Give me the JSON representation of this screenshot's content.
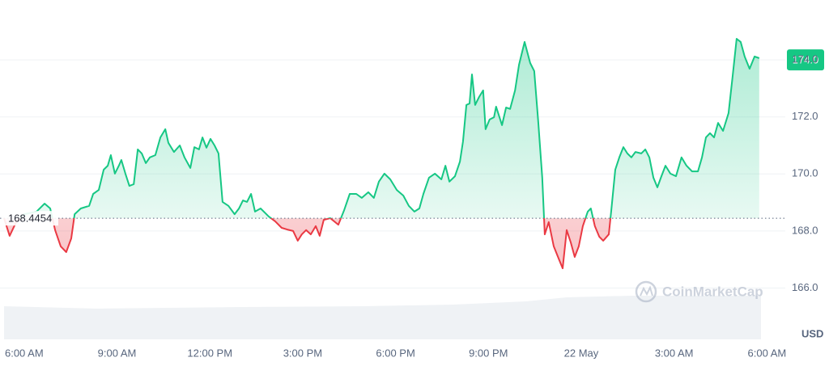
{
  "chart_data": {
    "type": "line",
    "baseline": 168.4454,
    "currency": "USD",
    "watermark": "CoinMarketCap",
    "last_value": 174,
    "last_value_label": "174.0",
    "up_color": "#16c784",
    "down_color": "#ea3943",
    "grid": true,
    "xlim": [
      -0.65,
      24.2
    ],
    "ylim": [
      164.2,
      176.1
    ],
    "xticks": [
      {
        "value": 0,
        "label": "6:00 AM"
      },
      {
        "value": 3,
        "label": "9:00 AM"
      },
      {
        "value": 6,
        "label": "12:00 PM"
      },
      {
        "value": 9,
        "label": "3:00 PM"
      },
      {
        "value": 12,
        "label": "6:00 PM"
      },
      {
        "value": 15,
        "label": "9:00 PM"
      },
      {
        "value": 18,
        "label": "22 May"
      },
      {
        "value": 21,
        "label": "3:00 AM"
      },
      {
        "value": 24,
        "label": "6:00 AM"
      }
    ],
    "yticks": [
      {
        "value": 166,
        "label": "166.0"
      },
      {
        "value": 168,
        "label": "168.0"
      },
      {
        "value": 170,
        "label": "170.0"
      },
      {
        "value": 172,
        "label": "172.0"
      },
      {
        "value": 174,
        "label": "174.0"
      }
    ],
    "x": [
      -0.65,
      -0.47,
      -0.26,
      0.0,
      0.4,
      0.66,
      0.84,
      1.0,
      1.18,
      1.36,
      1.52,
      1.63,
      1.83,
      2.1,
      2.23,
      2.41,
      2.57,
      2.7,
      2.8,
      2.93,
      3.06,
      3.14,
      3.27,
      3.4,
      3.54,
      3.67,
      3.8,
      3.93,
      4.06,
      4.24,
      4.4,
      4.56,
      4.66,
      4.84,
      5.03,
      5.18,
      5.37,
      5.5,
      5.65,
      5.76,
      5.89,
      6.02,
      6.15,
      6.28,
      6.41,
      6.6,
      6.8,
      6.94,
      7.07,
      7.2,
      7.33,
      7.46,
      7.64,
      7.9,
      8.11,
      8.32,
      8.5,
      8.69,
      8.84,
      8.97,
      9.11,
      9.26,
      9.42,
      9.55,
      9.68,
      9.89,
      10.15,
      10.34,
      10.52,
      10.73,
      10.91,
      11.12,
      11.3,
      11.46,
      11.64,
      11.83,
      12.04,
      12.25,
      12.43,
      12.61,
      12.77,
      12.9,
      13.08,
      13.27,
      13.48,
      13.61,
      13.74,
      13.92,
      14.08,
      14.18,
      14.29,
      14.39,
      14.47,
      14.57,
      14.7,
      14.83,
      14.91,
      15.04,
      15.18,
      15.25,
      15.44,
      15.57,
      15.7,
      15.86,
      15.99,
      16.17,
      16.35,
      16.48,
      16.61,
      16.74,
      16.82,
      16.95,
      17.11,
      17.27,
      17.4,
      17.53,
      17.66,
      17.79,
      17.92,
      18.05,
      18.21,
      18.31,
      18.44,
      18.58,
      18.71,
      18.89,
      18.97,
      19.1,
      19.23,
      19.36,
      19.49,
      19.62,
      19.75,
      19.94,
      20.07,
      20.2,
      20.33,
      20.46,
      20.59,
      20.72,
      20.88,
      21.06,
      21.24,
      21.4,
      21.58,
      21.77,
      21.9,
      22.03,
      22.16,
      22.29,
      22.42,
      22.58,
      22.76,
      22.89,
      23.02,
      23.15,
      23.28,
      23.44,
      23.6,
      23.75
    ],
    "values": [
      168.45,
      167.83,
      168.31,
      168.59,
      168.68,
      168.96,
      168.79,
      168.03,
      167.46,
      167.26,
      167.74,
      168.59,
      168.79,
      168.88,
      169.3,
      169.44,
      170.15,
      170.29,
      170.66,
      170.01,
      170.29,
      170.49,
      170.01,
      169.58,
      169.64,
      170.86,
      170.72,
      170.38,
      170.58,
      170.66,
      171.28,
      171.57,
      171.09,
      170.77,
      171.0,
      170.58,
      170.21,
      170.94,
      170.86,
      171.28,
      170.92,
      171.23,
      171.0,
      170.72,
      169.02,
      168.88,
      168.59,
      168.79,
      169.07,
      169.02,
      169.3,
      168.68,
      168.79,
      168.51,
      168.34,
      168.11,
      168.05,
      168.0,
      167.66,
      167.88,
      168.03,
      167.88,
      168.17,
      167.83,
      168.39,
      168.45,
      168.22,
      168.73,
      169.3,
      169.3,
      169.16,
      169.36,
      169.16,
      169.73,
      170.01,
      169.81,
      169.44,
      169.24,
      168.88,
      168.68,
      168.79,
      169.3,
      169.87,
      170.01,
      169.81,
      170.29,
      169.73,
      169.92,
      170.43,
      171.14,
      172.42,
      172.47,
      173.49,
      172.42,
      172.7,
      172.93,
      171.57,
      171.91,
      171.99,
      172.36,
      171.71,
      172.33,
      172.28,
      172.93,
      173.83,
      174.63,
      173.89,
      173.61,
      171.85,
      169.87,
      167.88,
      168.31,
      167.46,
      167.03,
      166.69,
      168.03,
      167.6,
      167.09,
      167.46,
      168.17,
      168.68,
      168.79,
      168.17,
      167.8,
      167.66,
      167.88,
      168.73,
      170.15,
      170.58,
      170.94,
      170.72,
      170.58,
      170.77,
      170.72,
      170.86,
      170.58,
      169.87,
      169.53,
      169.92,
      170.29,
      170.01,
      169.92,
      170.58,
      170.29,
      170.09,
      170.09,
      170.58,
      171.28,
      171.43,
      171.28,
      171.79,
      171.51,
      172.13,
      173.41,
      174.74,
      174.63,
      174.12,
      173.69,
      174.12,
      174.06
    ]
  }
}
